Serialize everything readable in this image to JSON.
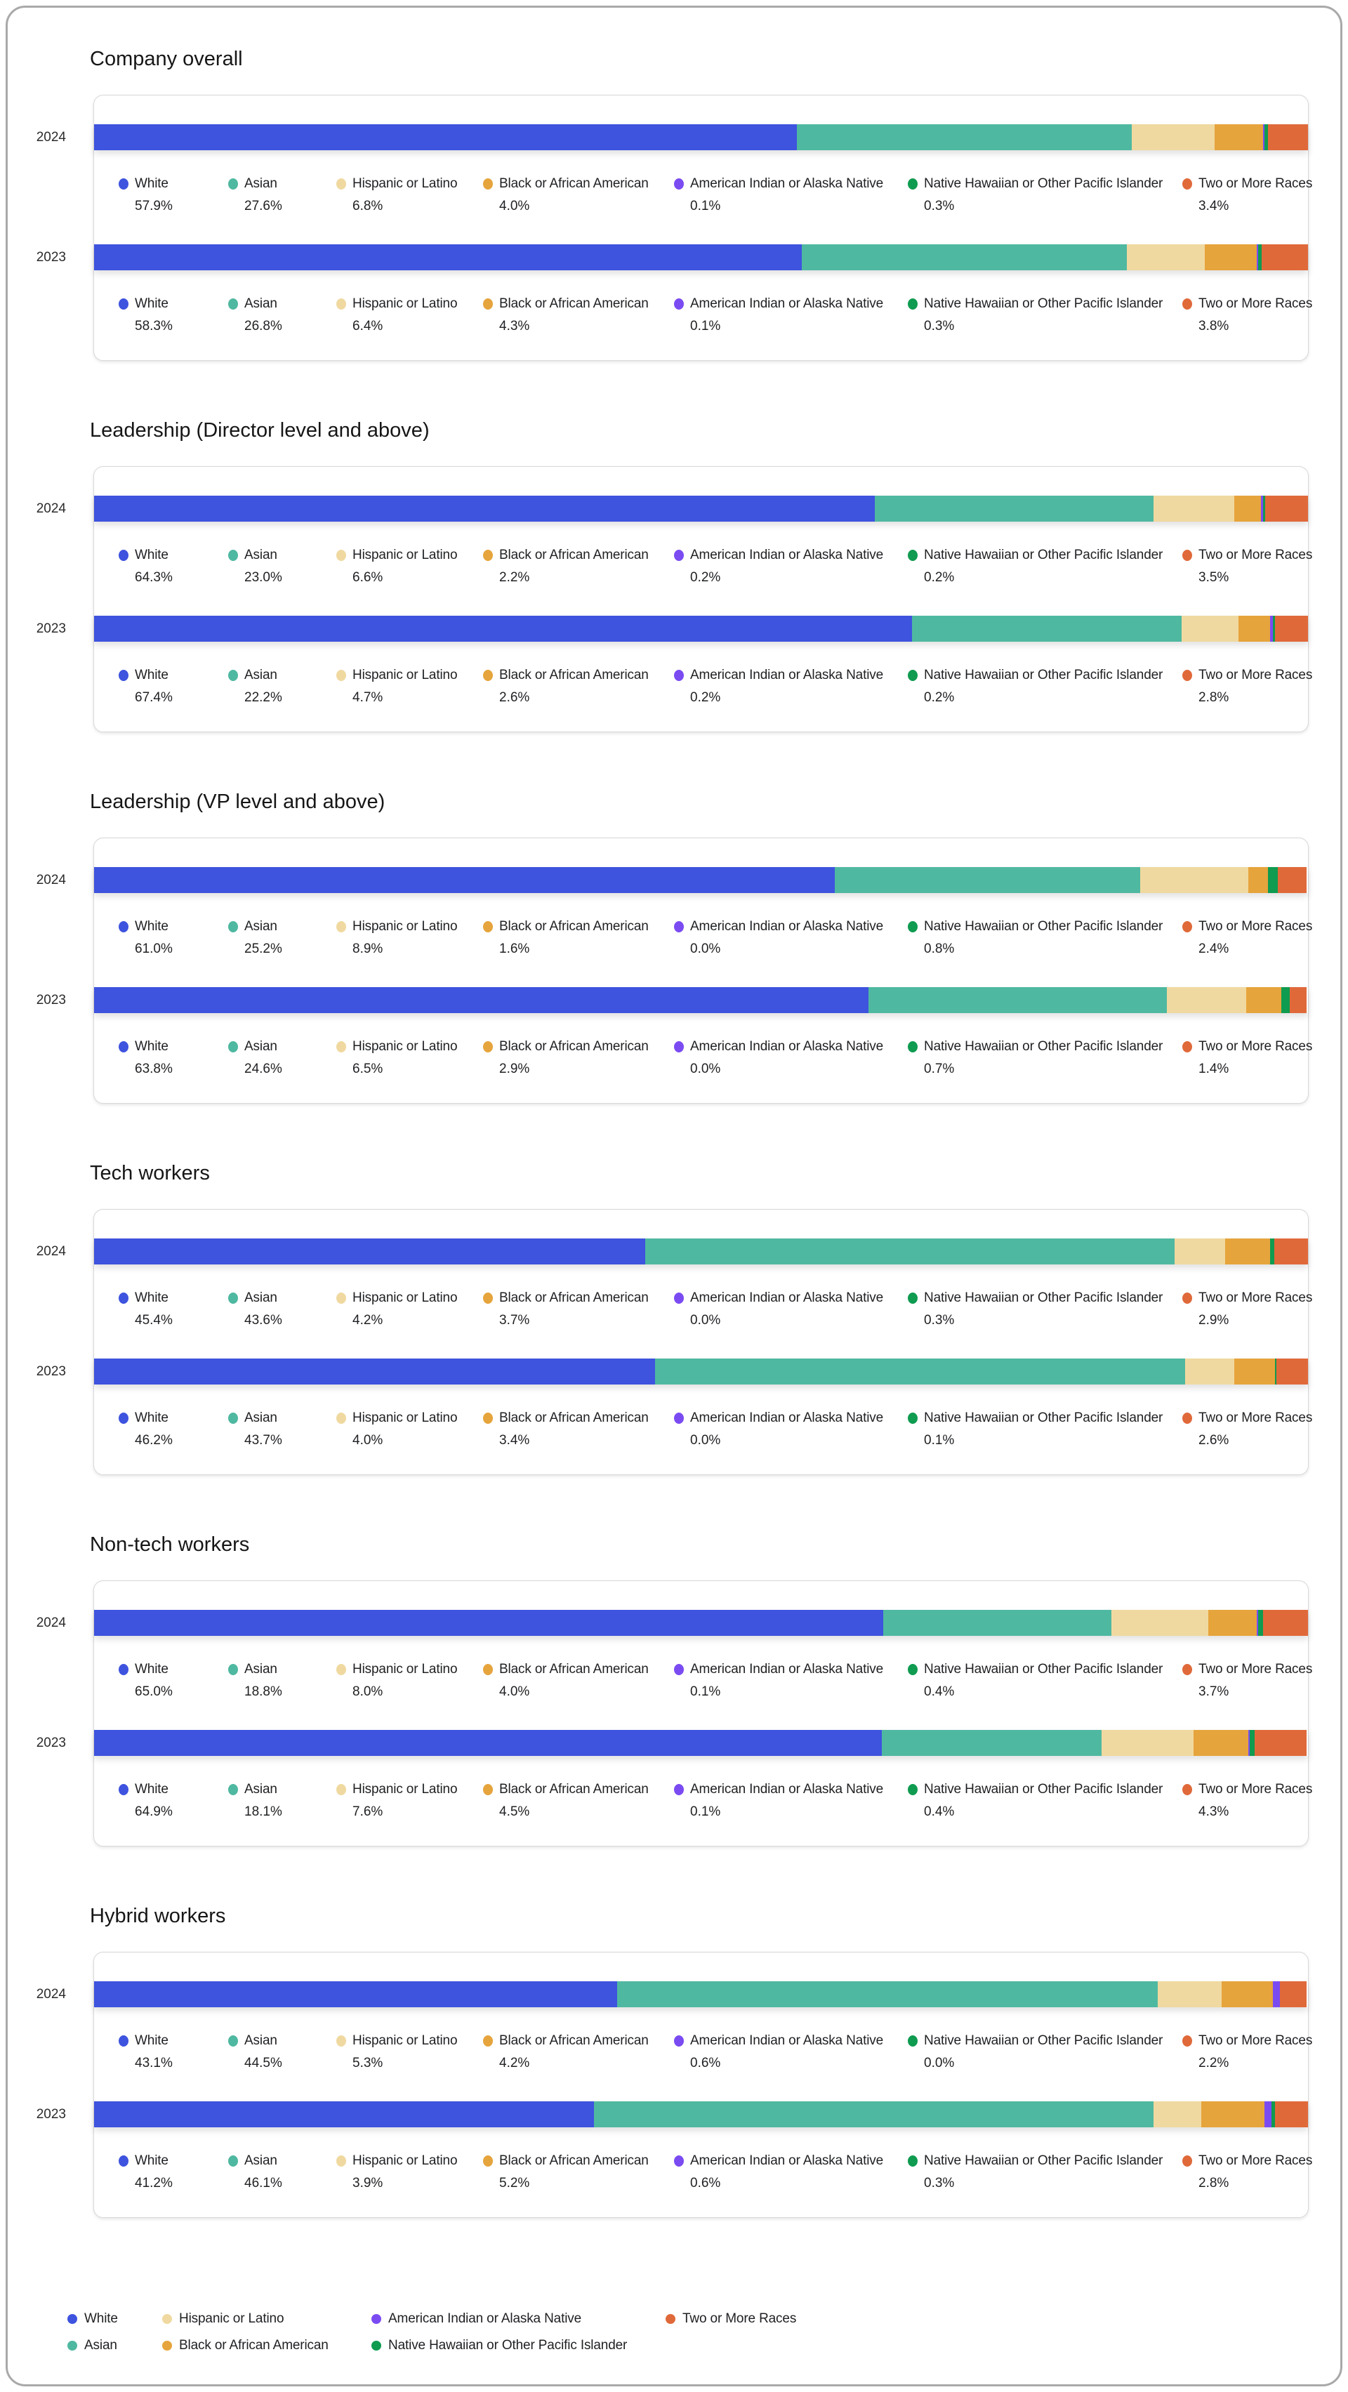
{
  "colors": {
    "White": "#3E53DE",
    "Asian": "#4FB8A1",
    "Hispanic or Latino": "#F0D9A0",
    "Black or African American": "#E6A43C",
    "American Indian or Alaska Native": "#7B4BF2",
    "Native Hawaiian or Other Pacific Islander": "#0F9B50",
    "Two or More Races": "#E0693A"
  },
  "chart_data": [
    {
      "type": "bar",
      "stacked": true,
      "orientation": "horizontal",
      "title": "Company overall",
      "unit": "%",
      "xlim": [
        0,
        100
      ],
      "legend_position": "below each bar",
      "categories": [
        "2024",
        "2023"
      ],
      "series": [
        {
          "name": "White",
          "values": [
            57.9,
            58.3
          ]
        },
        {
          "name": "Asian",
          "values": [
            27.6,
            26.8
          ]
        },
        {
          "name": "Hispanic or Latino",
          "values": [
            6.8,
            6.4
          ]
        },
        {
          "name": "Black or African American",
          "values": [
            4.0,
            4.3
          ]
        },
        {
          "name": "American Indian or Alaska Native",
          "values": [
            0.1,
            0.1
          ]
        },
        {
          "name": "Native Hawaiian or Other Pacific Islander",
          "values": [
            0.3,
            0.3
          ]
        },
        {
          "name": "Two or More Races",
          "values": [
            3.4,
            3.8
          ]
        }
      ]
    },
    {
      "type": "bar",
      "stacked": true,
      "orientation": "horizontal",
      "title": "Leadership (Director level and above)",
      "unit": "%",
      "xlim": [
        0,
        100
      ],
      "legend_position": "below each bar",
      "categories": [
        "2024",
        "2023"
      ],
      "series": [
        {
          "name": "White",
          "values": [
            64.3,
            67.4
          ]
        },
        {
          "name": "Asian",
          "values": [
            23.0,
            22.2
          ]
        },
        {
          "name": "Hispanic or Latino",
          "values": [
            6.6,
            4.7
          ]
        },
        {
          "name": "Black or African American",
          "values": [
            2.2,
            2.6
          ]
        },
        {
          "name": "American Indian or Alaska Native",
          "values": [
            0.2,
            0.2
          ]
        },
        {
          "name": "Native Hawaiian or Other Pacific Islander",
          "values": [
            0.2,
            0.2
          ]
        },
        {
          "name": "Two or More Races",
          "values": [
            3.5,
            2.8
          ]
        }
      ]
    },
    {
      "type": "bar",
      "stacked": true,
      "orientation": "horizontal",
      "title": "Leadership (VP level and above)",
      "unit": "%",
      "xlim": [
        0,
        100
      ],
      "legend_position": "below each bar",
      "categories": [
        "2024",
        "2023"
      ],
      "series": [
        {
          "name": "White",
          "values": [
            61.0,
            63.8
          ]
        },
        {
          "name": "Asian",
          "values": [
            25.2,
            24.6
          ]
        },
        {
          "name": "Hispanic or Latino",
          "values": [
            8.9,
            6.5
          ]
        },
        {
          "name": "Black or African American",
          "values": [
            1.6,
            2.9
          ]
        },
        {
          "name": "American Indian or Alaska Native",
          "values": [
            0.0,
            0.0
          ]
        },
        {
          "name": "Native Hawaiian or Other Pacific Islander",
          "values": [
            0.8,
            0.7
          ]
        },
        {
          "name": "Two or More Races",
          "values": [
            2.4,
            1.4
          ]
        }
      ]
    },
    {
      "type": "bar",
      "stacked": true,
      "orientation": "horizontal",
      "title": "Tech workers",
      "unit": "%",
      "xlim": [
        0,
        100
      ],
      "legend_position": "below each bar",
      "categories": [
        "2024",
        "2023"
      ],
      "series": [
        {
          "name": "White",
          "values": [
            45.4,
            46.2
          ]
        },
        {
          "name": "Asian",
          "values": [
            43.6,
            43.7
          ]
        },
        {
          "name": "Hispanic or Latino",
          "values": [
            4.2,
            4.0
          ]
        },
        {
          "name": "Black or African American",
          "values": [
            3.7,
            3.4
          ]
        },
        {
          "name": "American Indian or Alaska Native",
          "values": [
            0.0,
            0.0
          ]
        },
        {
          "name": "Native Hawaiian or Other Pacific Islander",
          "values": [
            0.3,
            0.1
          ]
        },
        {
          "name": "Two or More Races",
          "values": [
            2.9,
            2.6
          ]
        }
      ]
    },
    {
      "type": "bar",
      "stacked": true,
      "orientation": "horizontal",
      "title": "Non-tech workers",
      "unit": "%",
      "xlim": [
        0,
        100
      ],
      "legend_position": "below each bar",
      "categories": [
        "2024",
        "2023"
      ],
      "series": [
        {
          "name": "White",
          "values": [
            65.0,
            64.9
          ]
        },
        {
          "name": "Asian",
          "values": [
            18.8,
            18.1
          ]
        },
        {
          "name": "Hispanic or Latino",
          "values": [
            8.0,
            7.6
          ]
        },
        {
          "name": "Black or African American",
          "values": [
            4.0,
            4.5
          ]
        },
        {
          "name": "American Indian or Alaska Native",
          "values": [
            0.1,
            0.1
          ]
        },
        {
          "name": "Native Hawaiian or Other Pacific Islander",
          "values": [
            0.4,
            0.4
          ]
        },
        {
          "name": "Two or More Races",
          "values": [
            3.7,
            4.3
          ]
        }
      ]
    },
    {
      "type": "bar",
      "stacked": true,
      "orientation": "horizontal",
      "title": "Hybrid workers",
      "unit": "%",
      "xlim": [
        0,
        100
      ],
      "legend_position": "below each bar",
      "categories": [
        "2024",
        "2023"
      ],
      "series": [
        {
          "name": "White",
          "values": [
            43.1,
            41.2
          ]
        },
        {
          "name": "Asian",
          "values": [
            44.5,
            46.1
          ]
        },
        {
          "name": "Hispanic or Latino",
          "values": [
            5.3,
            3.9
          ]
        },
        {
          "name": "Black or African American",
          "values": [
            4.2,
            5.2
          ]
        },
        {
          "name": "American Indian or Alaska Native",
          "values": [
            0.6,
            0.6
          ]
        },
        {
          "name": "Native Hawaiian or Other Pacific Islander",
          "values": [
            0.0,
            0.3
          ]
        },
        {
          "name": "Two or More Races",
          "values": [
            2.2,
            2.8
          ]
        }
      ]
    }
  ],
  "footer_legend": {
    "rows": [
      [
        "White",
        "Hispanic or Latino",
        "American Indian or Alaska Native",
        "Two or More Races"
      ],
      [
        "Asian",
        "Black or African American",
        "Native Hawaiian or Other Pacific Islander"
      ]
    ]
  }
}
